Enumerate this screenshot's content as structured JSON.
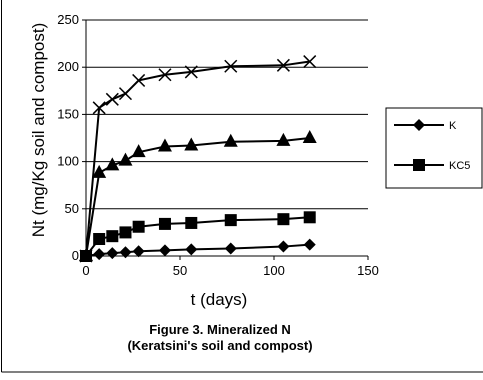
{
  "chart_data": {
    "type": "line",
    "title": "",
    "xlabel": "t (days)",
    "ylabel": "Nt (mg/Kg soil and compost)",
    "xlim": [
      0,
      150
    ],
    "ylim": [
      0,
      250
    ],
    "xticks": [
      0,
      50,
      100,
      150
    ],
    "yticks": [
      0,
      50,
      100,
      150,
      200,
      250
    ],
    "grid": "horizontal",
    "legend_position": "right",
    "caption": [
      "Figure 3. Mineralized N",
      "(Keratsini's soil and compost)"
    ],
    "series": [
      {
        "name": "K",
        "marker": "diamond",
        "x": [
          0,
          7,
          14,
          21,
          28,
          42,
          56,
          77,
          105,
          119
        ],
        "y": [
          0,
          2,
          3,
          4,
          5,
          6,
          7,
          8,
          10,
          12
        ]
      },
      {
        "name": "KC5",
        "marker": "square",
        "x": [
          0,
          7,
          14,
          21,
          28,
          42,
          56,
          77,
          105,
          119
        ],
        "y": [
          0,
          18,
          21,
          25,
          31,
          34,
          35,
          38,
          39,
          41
        ]
      },
      {
        "name": "",
        "marker": "triangle",
        "x": [
          0,
          7,
          14,
          21,
          28,
          42,
          56,
          77,
          105,
          119
        ],
        "y": [
          0,
          88,
          96,
          101,
          110,
          116,
          117,
          121,
          122,
          125
        ]
      },
      {
        "name": "",
        "marker": "x",
        "x": [
          0,
          7,
          14,
          21,
          28,
          42,
          56,
          77,
          105,
          119
        ],
        "y": [
          0,
          157,
          166,
          172,
          186,
          192,
          195,
          201,
          202,
          206
        ]
      }
    ]
  }
}
